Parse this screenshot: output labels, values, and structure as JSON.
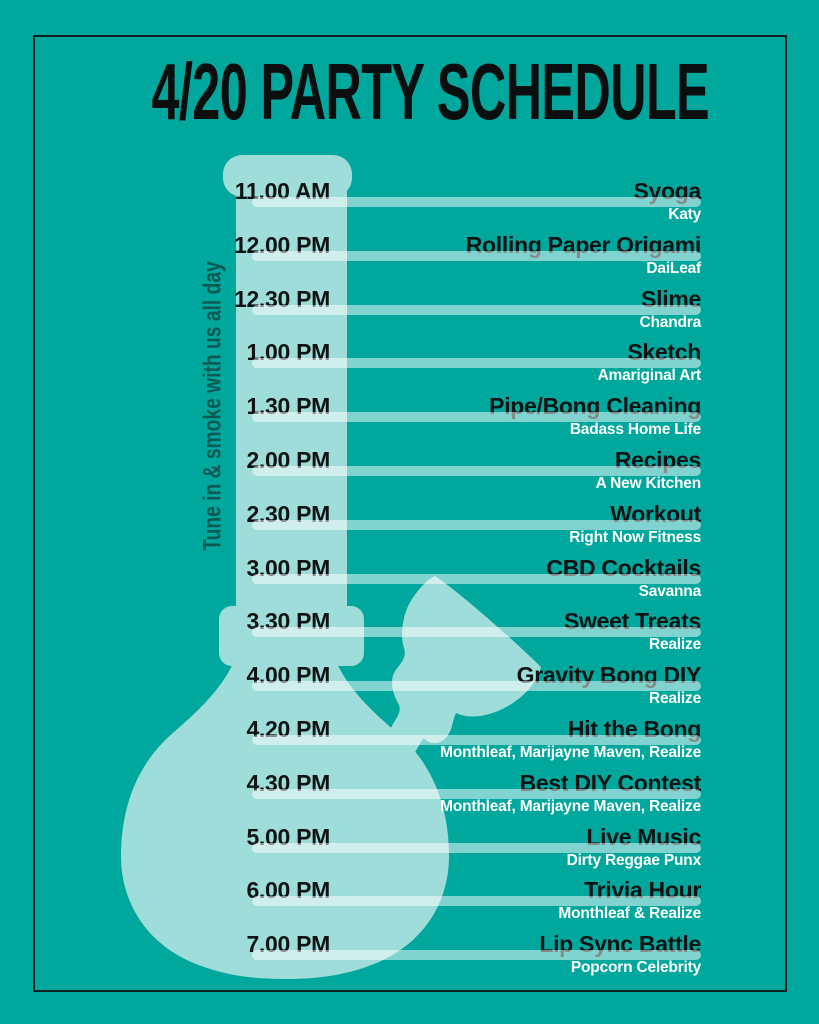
{
  "title": "4/20 PARTY SCHEDULE",
  "tagline": "Tune in & smoke with us all day",
  "schedule": {
    "rows": [
      {
        "time": "11.00 AM",
        "event": "Syoga",
        "host": "Katy"
      },
      {
        "time": "12.00 PM",
        "event": "Rolling Paper Origami",
        "host": "DaiLeaf"
      },
      {
        "time": "12.30 PM",
        "event": "Slime",
        "host": "Chandra"
      },
      {
        "time": "1.00 PM",
        "event": "Sketch",
        "host": "Amariginal Art"
      },
      {
        "time": "1.30 PM",
        "event": "Pipe/Bong Cleaning",
        "host": "Badass Home Life"
      },
      {
        "time": "2.00 PM",
        "event": "Recipes",
        "host": "A New Kitchen"
      },
      {
        "time": "2.30 PM",
        "event": "Workout",
        "host": "Right Now Fitness"
      },
      {
        "time": "3.00 PM",
        "event": "CBD Cocktails",
        "host": "Savanna"
      },
      {
        "time": "3.30 PM",
        "event": "Sweet Treats",
        "host": "Realize"
      },
      {
        "time": "4.00 PM",
        "event": "Gravity Bong DIY",
        "host": "Realize"
      },
      {
        "time": "4.20 PM",
        "event": "Hit the Bong",
        "host": "Monthleaf, Marijayne Maven, Realize"
      },
      {
        "time": "4.30 PM",
        "event": "Best DIY Contest",
        "host": "Monthleaf, Marijayne Maven, Realize"
      },
      {
        "time": "5.00 PM",
        "event": "Live Music",
        "host": "Dirty Reggae Punx"
      },
      {
        "time": "6.00 PM",
        "event": "Trivia Hour",
        "host": "Monthleaf & Realize"
      },
      {
        "time": "7.00 PM",
        "event": "Lip Sync Battle",
        "host": "Popcorn Celebrity"
      }
    ]
  },
  "illustration": "bong-silhouette",
  "colors": {
    "background": "#00a79c",
    "frame_border": "#0c201e",
    "title_text": "#0b0e0f",
    "schedule_text": "#101314",
    "host_text": "#ffffff",
    "tagline_text": "#0d5a55",
    "bong_fill": "rgba(255,255,255,0.62)",
    "divider_fill": "rgba(255,255,255,0.5)"
  },
  "layout": {
    "row_top_start": 180,
    "row_pitch": 53.8
  }
}
